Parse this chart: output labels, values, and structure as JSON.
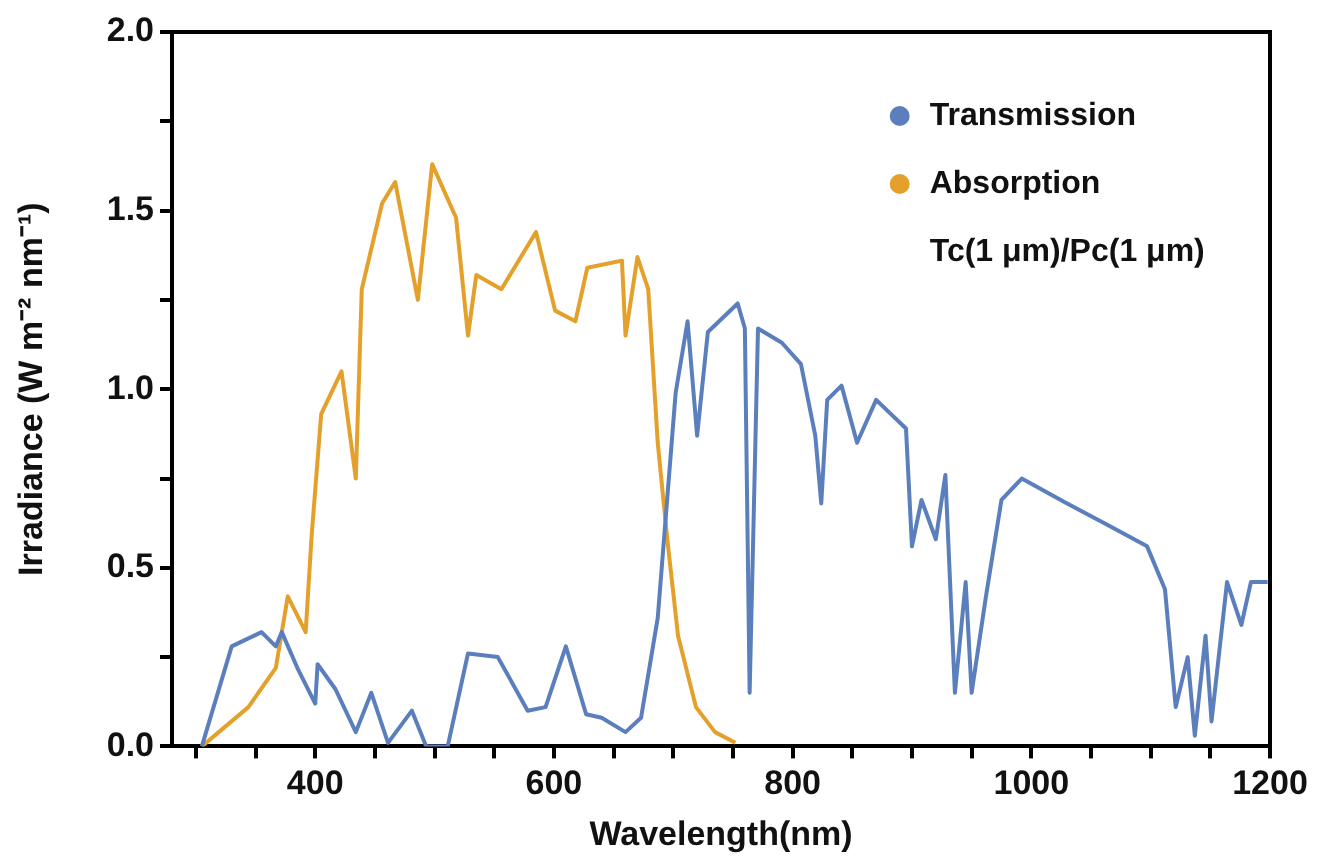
{
  "chart_data": {
    "type": "line",
    "xlabel": "Wavelength(nm)",
    "ylabel": "Irradiance (W m⁻² nm⁻¹)",
    "xlim": [
      280,
      1200
    ],
    "ylim": [
      0,
      2
    ],
    "xticks": [
      {
        "value": 300,
        "label": null
      },
      {
        "value": 350,
        "label": null
      },
      400,
      {
        "value": 450,
        "label": null
      },
      {
        "value": 500,
        "label": null
      },
      {
        "value": 550,
        "label": null
      },
      600,
      {
        "value": 650,
        "label": null
      },
      {
        "value": 700,
        "label": null
      },
      {
        "value": 750,
        "label": null
      },
      800,
      {
        "value": 850,
        "label": null
      },
      {
        "value": 900,
        "label": null
      },
      {
        "value": 950,
        "label": null
      },
      1000,
      {
        "value": 1050,
        "label": null
      },
      {
        "value": 1100,
        "label": null
      },
      {
        "value": 1150,
        "label": null
      },
      1200
    ],
    "yticks": [
      {
        "value": 0,
        "label": "0.0"
      },
      {
        "value": 0.25,
        "label": null
      },
      {
        "value": 0.5,
        "label": "0.5"
      },
      {
        "value": 0.75,
        "label": null
      },
      {
        "value": 1,
        "label": "1.0"
      },
      {
        "value": 1.25,
        "label": null
      },
      {
        "value": 1.5,
        "label": "1.5"
      },
      {
        "value": 1.75,
        "label": null
      },
      {
        "value": 2,
        "label": "2.0"
      }
    ],
    "grid": false,
    "legend": "top right",
    "marker": "none",
    "line_style": "solid",
    "annotations": [
      "Tc(1 μm)/Pc(1 μm)"
    ],
    "series": [
      {
        "name": "Transmission",
        "color": "#5b7fbd",
        "x": [
          305,
          330,
          355,
          367,
          372,
          385,
          400,
          402,
          417,
          434,
          447,
          461,
          481,
          493,
          511,
          528,
          553,
          578,
          593,
          610,
          627,
          640,
          660,
          673,
          687,
          702,
          712,
          720,
          729,
          754,
          760,
          764,
          771,
          791,
          807,
          819,
          824,
          829,
          841,
          854,
          870,
          895,
          900,
          908,
          920,
          928,
          936,
          945,
          950,
          962,
          975,
          992,
          1030,
          1064,
          1097,
          1112,
          1121,
          1131,
          1137,
          1146,
          1151,
          1164,
          1176,
          1184,
          1198
        ],
        "values": [
          0,
          0.28,
          0.32,
          0.28,
          0.32,
          0.22,
          0.12,
          0.23,
          0.16,
          0.04,
          0.15,
          0.01,
          0.1,
          0,
          0,
          0.26,
          0.25,
          0.1,
          0.11,
          0.28,
          0.09,
          0.08,
          0.04,
          0.08,
          0.36,
          0.99,
          1.19,
          0.87,
          1.16,
          1.24,
          1.17,
          0.15,
          1.17,
          1.13,
          1.07,
          0.87,
          0.68,
          0.97,
          1.01,
          0.85,
          0.97,
          0.89,
          0.56,
          0.69,
          0.58,
          0.76,
          0.15,
          0.46,
          0.15,
          0.42,
          0.69,
          0.75,
          0.68,
          0.62,
          0.56,
          0.44,
          0.11,
          0.25,
          0.03,
          0.31,
          0.07,
          0.46,
          0.34,
          0.46,
          0.46
        ]
      },
      {
        "name": "Absorption",
        "color": "#e3a12b",
        "x": [
          305,
          344,
          367,
          377,
          392,
          397,
          405,
          422,
          434,
          439,
          456,
          467,
          486,
          498,
          518,
          528,
          535,
          556,
          585,
          601,
          618,
          628,
          657,
          660,
          670,
          679,
          687,
          695,
          704,
          719,
          735,
          752
        ],
        "values": [
          0,
          0.11,
          0.22,
          0.42,
          0.32,
          0.59,
          0.93,
          1.05,
          0.75,
          1.28,
          1.52,
          1.58,
          1.25,
          1.63,
          1.48,
          1.15,
          1.32,
          1.28,
          1.44,
          1.22,
          1.19,
          1.34,
          1.36,
          1.15,
          1.37,
          1.28,
          0.85,
          0.58,
          0.31,
          0.11,
          0.04,
          0.01
        ]
      }
    ]
  }
}
